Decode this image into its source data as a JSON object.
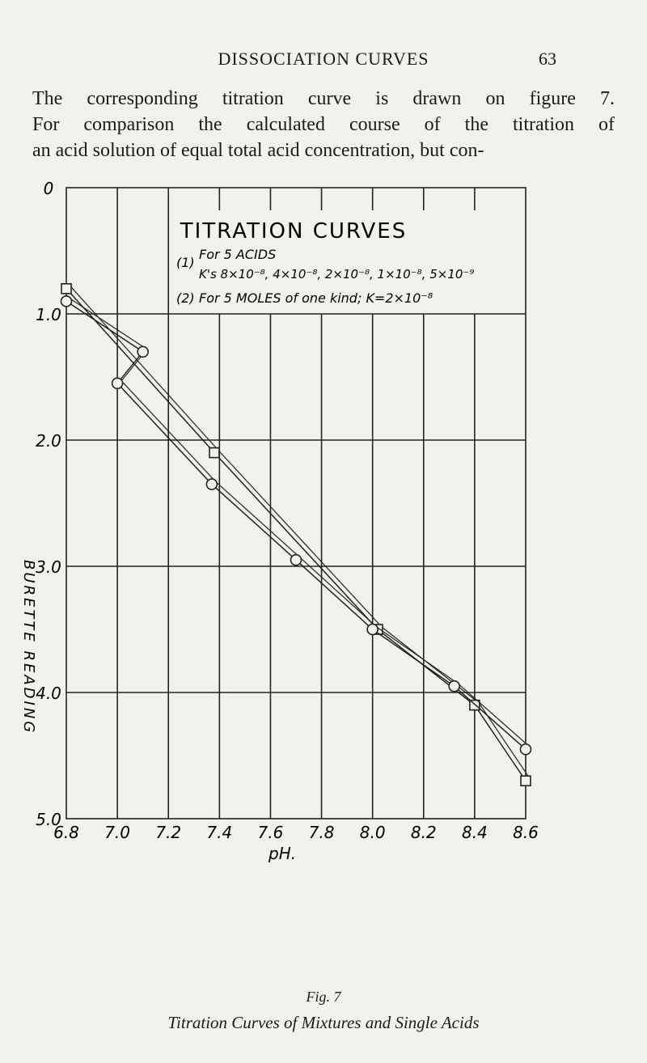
{
  "page": {
    "running_title": "DISSOCIATION CURVES",
    "page_number": "63"
  },
  "body_text": [
    "The corresponding titration curve is drawn on figure 7.",
    "For comparison the calculated course of the titration of",
    "an acid solution of equal total acid concentration, but con-"
  ],
  "figure": {
    "number_label": "Fig. 7",
    "caption": "Titration Curves of Mixtures and Single Acids"
  },
  "chart_data": {
    "type": "line",
    "title": "TITRATION CURVES",
    "legend": {
      "entry1_num": "(1)",
      "entry1_line1": "For 5 ACIDS",
      "entry1_line2": "K's  8×10⁻⁸, 4×10⁻⁸, 2×10⁻⁸, 1×10⁻⁸, 5×10⁻⁹",
      "entry2_num": "(2)",
      "entry2_text": "For 5 MOLES of one kind; K=2×10⁻⁸",
      "placement": "top"
    },
    "xlabel": "pH.",
    "ylabel": "BURETTE READING",
    "x_ticks": [
      "6.8",
      "7.0",
      "7.2",
      "7.4",
      "7.6",
      "7.8",
      "8.0",
      "8.2",
      "8.4",
      "8.6"
    ],
    "y_ticks": [
      "0",
      "1.0",
      "2.0",
      "3.0",
      "4.0",
      "5.0"
    ],
    "xlim": [
      6.8,
      8.6
    ],
    "ylim": [
      0,
      5.0
    ],
    "y_inverted": true,
    "grid": true,
    "series": [
      {
        "name": "(1)",
        "marker": "square",
        "points": [
          [
            6.8,
            0.8
          ],
          [
            7.38,
            2.1
          ],
          [
            8.02,
            3.5
          ],
          [
            8.4,
            4.1
          ],
          [
            8.6,
            4.7
          ]
        ]
      },
      {
        "name": "(2)",
        "marker": "circle",
        "points": [
          [
            6.8,
            0.9
          ],
          [
            7.1,
            1.3
          ],
          [
            7.0,
            1.55
          ],
          [
            7.37,
            2.35
          ],
          [
            7.7,
            2.95
          ],
          [
            8.0,
            3.5
          ],
          [
            8.32,
            3.95
          ],
          [
            8.6,
            4.45
          ]
        ]
      }
    ]
  }
}
